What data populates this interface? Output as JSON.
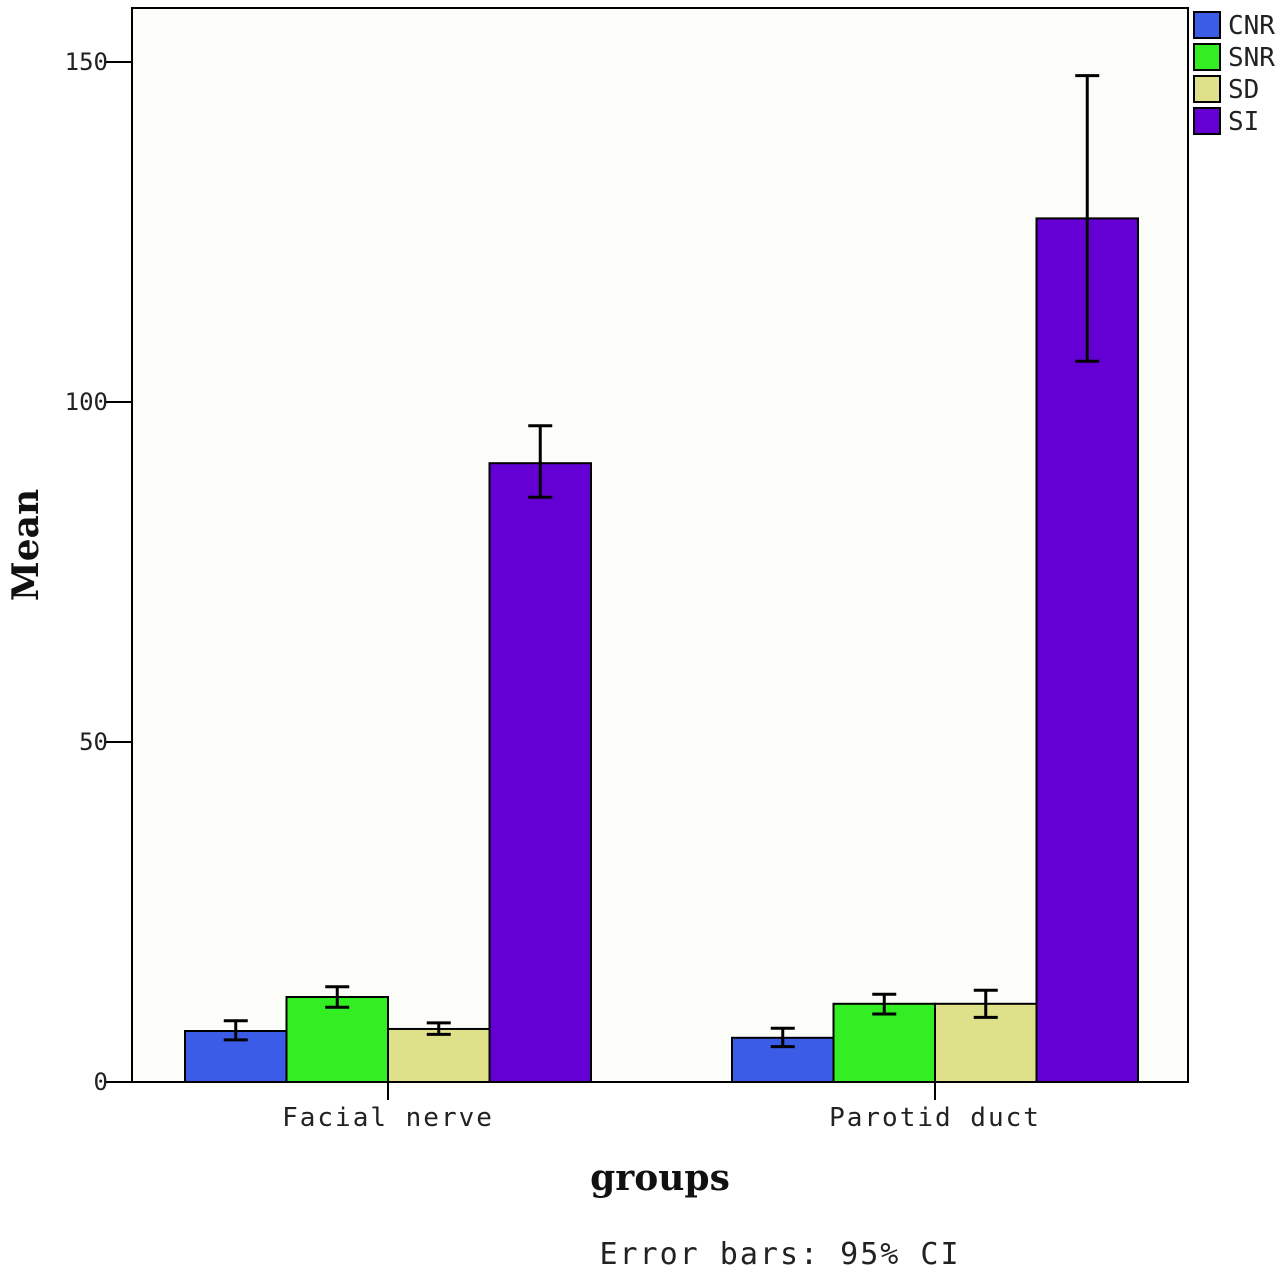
{
  "chart_data": {
    "type": "bar",
    "categories": [
      "Facial nerve",
      "Parotid duct"
    ],
    "series": [
      {
        "name": "CNR",
        "color": "#3a5ce6",
        "values": [
          7.5,
          6.5
        ],
        "ci_low": [
          6.2,
          5.2
        ],
        "ci_high": [
          9.0,
          7.9
        ]
      },
      {
        "name": "SNR",
        "color": "#33ee22",
        "values": [
          12.5,
          11.5
        ],
        "ci_low": [
          11.0,
          10.0
        ],
        "ci_high": [
          14.0,
          12.9
        ]
      },
      {
        "name": "SD",
        "color": "#dfe08a",
        "values": [
          7.8,
          11.5
        ],
        "ci_low": [
          7.0,
          9.5
        ],
        "ci_high": [
          8.7,
          13.5
        ]
      },
      {
        "name": "SI",
        "color": "#6400d4",
        "values": [
          91.0,
          127.0
        ],
        "ci_low": [
          86.0,
          106.0
        ],
        "ci_high": [
          96.5,
          148.0
        ]
      }
    ],
    "yticks": [
      0,
      50,
      100,
      150
    ],
    "ylim": [
      0,
      158
    ],
    "xlabel": "groups",
    "ylabel": "Mean",
    "note": "Error bars: 95% CI",
    "legend_position": "top-right"
  }
}
